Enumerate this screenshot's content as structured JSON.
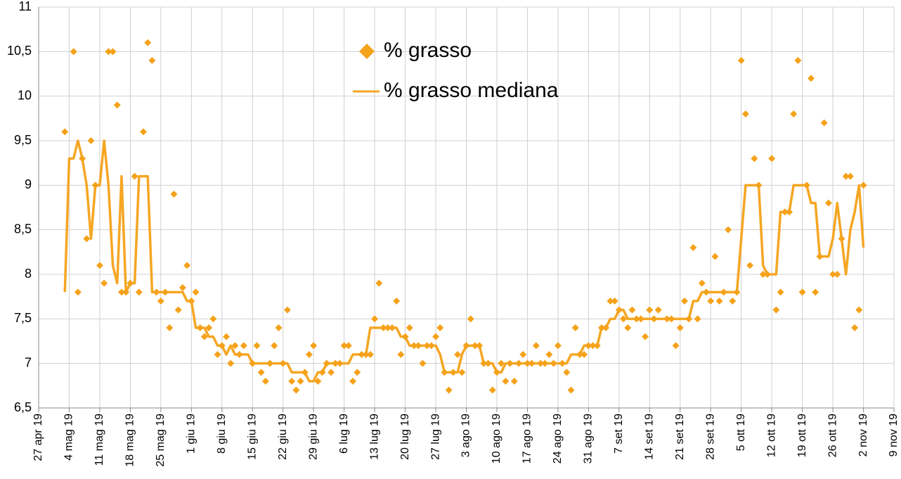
{
  "chart_data": {
    "type": "scatter+line",
    "x": [
      "2019-05-03",
      "2019-05-04",
      "2019-05-05",
      "2019-05-06",
      "2019-05-07",
      "2019-05-08",
      "2019-05-09",
      "2019-05-10",
      "2019-05-11",
      "2019-05-12",
      "2019-05-13",
      "2019-05-14",
      "2019-05-15",
      "2019-05-16",
      "2019-05-17",
      "2019-05-18",
      "2019-05-19",
      "2019-05-20",
      "2019-05-21",
      "2019-05-22",
      "2019-05-23",
      "2019-05-24",
      "2019-05-25",
      "2019-05-26",
      "2019-05-27",
      "2019-05-28",
      "2019-05-29",
      "2019-05-30",
      "2019-05-31",
      "2019-06-01",
      "2019-06-02",
      "2019-06-03",
      "2019-06-04",
      "2019-06-05",
      "2019-06-06",
      "2019-06-07",
      "2019-06-08",
      "2019-06-09",
      "2019-06-10",
      "2019-06-11",
      "2019-06-12",
      "2019-06-13",
      "2019-06-14",
      "2019-06-15",
      "2019-06-16",
      "2019-06-17",
      "2019-06-18",
      "2019-06-19",
      "2019-06-20",
      "2019-06-21",
      "2019-06-22",
      "2019-06-23",
      "2019-06-24",
      "2019-06-25",
      "2019-06-26",
      "2019-06-27",
      "2019-06-28",
      "2019-06-29",
      "2019-06-30",
      "2019-07-01",
      "2019-07-02",
      "2019-07-03",
      "2019-07-04",
      "2019-07-05",
      "2019-07-06",
      "2019-07-07",
      "2019-07-08",
      "2019-07-09",
      "2019-07-10",
      "2019-07-11",
      "2019-07-12",
      "2019-07-13",
      "2019-07-14",
      "2019-07-15",
      "2019-07-16",
      "2019-07-17",
      "2019-07-18",
      "2019-07-19",
      "2019-07-20",
      "2019-07-21",
      "2019-07-22",
      "2019-07-23",
      "2019-07-24",
      "2019-07-25",
      "2019-07-26",
      "2019-07-27",
      "2019-07-28",
      "2019-07-29",
      "2019-07-30",
      "2019-07-31",
      "2019-08-01",
      "2019-08-02",
      "2019-08-03",
      "2019-08-04",
      "2019-08-05",
      "2019-08-06",
      "2019-08-07",
      "2019-08-08",
      "2019-08-09",
      "2019-08-10",
      "2019-08-11",
      "2019-08-12",
      "2019-08-13",
      "2019-08-14",
      "2019-08-15",
      "2019-08-16",
      "2019-08-17",
      "2019-08-18",
      "2019-08-19",
      "2019-08-20",
      "2019-08-21",
      "2019-08-22",
      "2019-08-23",
      "2019-08-24",
      "2019-08-25",
      "2019-08-26",
      "2019-08-27",
      "2019-08-28",
      "2019-08-29",
      "2019-08-30",
      "2019-08-31",
      "2019-09-01",
      "2019-09-02",
      "2019-09-03",
      "2019-09-04",
      "2019-09-05",
      "2019-09-06",
      "2019-09-07",
      "2019-09-08",
      "2019-09-09",
      "2019-09-10",
      "2019-09-11",
      "2019-09-12",
      "2019-09-13",
      "2019-09-14",
      "2019-09-15",
      "2019-09-16",
      "2019-09-17",
      "2019-09-18",
      "2019-09-19",
      "2019-09-20",
      "2019-09-21",
      "2019-09-22",
      "2019-09-23",
      "2019-09-24",
      "2019-09-25",
      "2019-09-26",
      "2019-09-27",
      "2019-09-28",
      "2019-09-29",
      "2019-09-30",
      "2019-10-01",
      "2019-10-02",
      "2019-10-03",
      "2019-10-04",
      "2019-10-05",
      "2019-10-06",
      "2019-10-07",
      "2019-10-08",
      "2019-10-09",
      "2019-10-10",
      "2019-10-11",
      "2019-10-12",
      "2019-10-13",
      "2019-10-14",
      "2019-10-15",
      "2019-10-16",
      "2019-10-17",
      "2019-10-18",
      "2019-10-19",
      "2019-10-20",
      "2019-10-21",
      "2019-10-22",
      "2019-10-23",
      "2019-10-24",
      "2019-10-25",
      "2019-10-26",
      "2019-10-27",
      "2019-10-28",
      "2019-10-29",
      "2019-10-30",
      "2019-10-31",
      "2019-11-01",
      "2019-11-02"
    ],
    "series": [
      {
        "name": "% grasso",
        "type": "scatter",
        "color": "#f5a21b",
        "values": [
          9.6,
          null,
          10.5,
          7.8,
          9.3,
          8.4,
          9.5,
          9.0,
          8.1,
          7.9,
          10.5,
          10.5,
          9.9,
          7.8,
          7.8,
          7.9,
          9.1,
          7.8,
          9.6,
          10.6,
          10.4,
          7.8,
          7.7,
          7.8,
          7.4,
          8.9,
          7.6,
          7.85,
          8.1,
          7.7,
          7.8,
          7.4,
          7.3,
          7.4,
          7.5,
          7.1,
          7.2,
          7.3,
          7.0,
          7.2,
          7.1,
          7.2,
          null,
          7.0,
          7.2,
          6.9,
          6.8,
          7.0,
          7.2,
          7.4,
          7.0,
          7.6,
          6.8,
          6.7,
          6.8,
          6.9,
          7.1,
          7.2,
          6.8,
          6.9,
          7.0,
          6.9,
          7.0,
          7.0,
          7.2,
          7.2,
          6.8,
          6.9,
          7.1,
          7.1,
          7.1,
          7.5,
          7.9,
          7.4,
          7.4,
          7.4,
          7.7,
          7.1,
          7.3,
          7.4,
          7.2,
          7.2,
          7.0,
          7.2,
          7.2,
          7.3,
          7.4,
          6.9,
          6.7,
          6.9,
          7.1,
          6.9,
          7.2,
          7.5,
          7.2,
          7.2,
          7.0,
          7.0,
          6.7,
          6.9,
          7.0,
          6.8,
          7.0,
          6.8,
          7.0,
          7.1,
          7.0,
          7.0,
          7.2,
          7.0,
          7.0,
          7.1,
          7.0,
          7.2,
          7.0,
          6.9,
          6.7,
          7.4,
          7.1,
          7.1,
          7.2,
          7.2,
          7.2,
          7.4,
          7.4,
          7.7,
          7.7,
          7.6,
          7.5,
          7.4,
          7.6,
          7.5,
          7.5,
          7.3,
          7.6,
          7.5,
          7.6,
          null,
          7.5,
          7.5,
          7.2,
          7.4,
          7.7,
          7.5,
          8.3,
          7.5,
          7.9,
          7.8,
          7.7,
          8.2,
          7.7,
          7.8,
          8.5,
          7.7,
          7.8,
          10.4,
          9.8,
          8.1,
          9.3,
          9.0,
          8.0,
          8.0,
          9.3,
          7.6,
          7.8,
          8.7,
          8.7,
          9.8,
          10.4,
          7.8,
          9.0,
          10.2,
          7.8,
          8.2,
          9.7,
          8.8,
          8.0,
          8.0,
          8.4,
          9.1,
          9.1,
          7.4,
          7.6,
          9.0
        ]
      },
      {
        "name": "% grasso mediana",
        "type": "line",
        "color": "#f5a623",
        "values": [
          7.8,
          9.3,
          9.3,
          9.5,
          9.3,
          9.0,
          8.4,
          9.0,
          9.0,
          9.5,
          9.0,
          8.1,
          7.9,
          9.1,
          7.8,
          7.9,
          7.9,
          9.1,
          9.1,
          9.1,
          7.8,
          7.8,
          7.8,
          7.8,
          7.8,
          7.8,
          7.8,
          7.8,
          7.7,
          7.7,
          7.4,
          7.4,
          7.4,
          7.3,
          7.3,
          7.2,
          7.2,
          7.1,
          7.2,
          7.1,
          7.1,
          7.1,
          7.1,
          7.0,
          7.0,
          7.0,
          7.0,
          7.0,
          7.0,
          7.0,
          7.0,
          7.0,
          6.9,
          6.9,
          6.9,
          6.9,
          6.8,
          6.8,
          6.9,
          6.9,
          7.0,
          7.0,
          7.0,
          7.0,
          7.0,
          7.0,
          7.1,
          7.1,
          7.1,
          7.1,
          7.4,
          7.4,
          7.4,
          7.4,
          7.4,
          7.4,
          7.4,
          7.3,
          7.3,
          7.2,
          7.2,
          7.2,
          7.2,
          7.2,
          7.2,
          7.2,
          7.1,
          6.9,
          6.9,
          6.9,
          6.9,
          7.1,
          7.2,
          7.2,
          7.2,
          7.2,
          7.0,
          7.0,
          7.0,
          6.9,
          6.9,
          7.0,
          7.0,
          7.0,
          7.0,
          7.0,
          7.0,
          7.0,
          7.0,
          7.0,
          7.0,
          7.0,
          7.0,
          7.0,
          7.0,
          7.0,
          7.1,
          7.1,
          7.1,
          7.2,
          7.2,
          7.2,
          7.2,
          7.4,
          7.4,
          7.5,
          7.5,
          7.6,
          7.6,
          7.5,
          7.5,
          7.5,
          7.5,
          7.5,
          7.5,
          7.5,
          7.5,
          7.5,
          7.5,
          7.5,
          7.5,
          7.5,
          7.5,
          7.5,
          7.7,
          7.7,
          7.8,
          7.8,
          7.8,
          7.8,
          7.8,
          7.8,
          7.8,
          7.8,
          7.8,
          8.4,
          9.0,
          9.0,
          9.0,
          9.0,
          8.1,
          8.0,
          8.0,
          8.0,
          8.7,
          8.7,
          8.7,
          9.0,
          9.0,
          9.0,
          9.0,
          8.8,
          8.8,
          8.2,
          8.2,
          8.2,
          8.4,
          8.8,
          8.4,
          8.0,
          8.5,
          8.7,
          9.0,
          8.3
        ]
      }
    ],
    "xlim": [
      "2019-04-27",
      "2019-11-09"
    ],
    "xticks": [
      {
        "value": "2019-04-27",
        "label": "27 apr 19"
      },
      {
        "value": "2019-05-04",
        "label": "4 mag 19"
      },
      {
        "value": "2019-05-11",
        "label": "11 mag 19"
      },
      {
        "value": "2019-05-18",
        "label": "18 mag 19"
      },
      {
        "value": "2019-05-25",
        "label": "25 mag 19"
      },
      {
        "value": "2019-06-01",
        "label": "1 giu 19"
      },
      {
        "value": "2019-06-08",
        "label": "8 giu 19"
      },
      {
        "value": "2019-06-15",
        "label": "15 giu 19"
      },
      {
        "value": "2019-06-22",
        "label": "22 giu 19"
      },
      {
        "value": "2019-06-29",
        "label": "29 giu 19"
      },
      {
        "value": "2019-07-06",
        "label": "6 lug 19"
      },
      {
        "value": "2019-07-13",
        "label": "13 lug 19"
      },
      {
        "value": "2019-07-20",
        "label": "20 lug 19"
      },
      {
        "value": "2019-07-27",
        "label": "27 lug 19"
      },
      {
        "value": "2019-08-03",
        "label": "3 ago 19"
      },
      {
        "value": "2019-08-10",
        "label": "10 ago 19"
      },
      {
        "value": "2019-08-17",
        "label": "17 ago 19"
      },
      {
        "value": "2019-08-24",
        "label": "24 ago 19"
      },
      {
        "value": "2019-08-31",
        "label": "31 ago 19"
      },
      {
        "value": "2019-09-07",
        "label": "7 set 19"
      },
      {
        "value": "2019-09-14",
        "label": "14 set 19"
      },
      {
        "value": "2019-09-21",
        "label": "21 set 19"
      },
      {
        "value": "2019-09-28",
        "label": "28 set 19"
      },
      {
        "value": "2019-10-05",
        "label": "5 ott 19"
      },
      {
        "value": "2019-10-12",
        "label": "12 ott 19"
      },
      {
        "value": "2019-10-19",
        "label": "19 ott 19"
      },
      {
        "value": "2019-10-26",
        "label": "26 ott 19"
      },
      {
        "value": "2019-11-02",
        "label": "2 nov 19"
      },
      {
        "value": "2019-11-09",
        "label": "9 nov 19"
      }
    ],
    "ylim": [
      6.5,
      11
    ],
    "yticks": [
      {
        "value": 6.5,
        "label": "6,5"
      },
      7,
      {
        "value": 7.5,
        "label": "7,5"
      },
      8,
      {
        "value": 8.5,
        "label": "8,5"
      },
      9,
      {
        "value": 9.5,
        "label": "9,5"
      },
      10,
      {
        "value": 10.5,
        "label": "10,5"
      },
      11
    ],
    "grid": true,
    "legend": "top-center"
  }
}
